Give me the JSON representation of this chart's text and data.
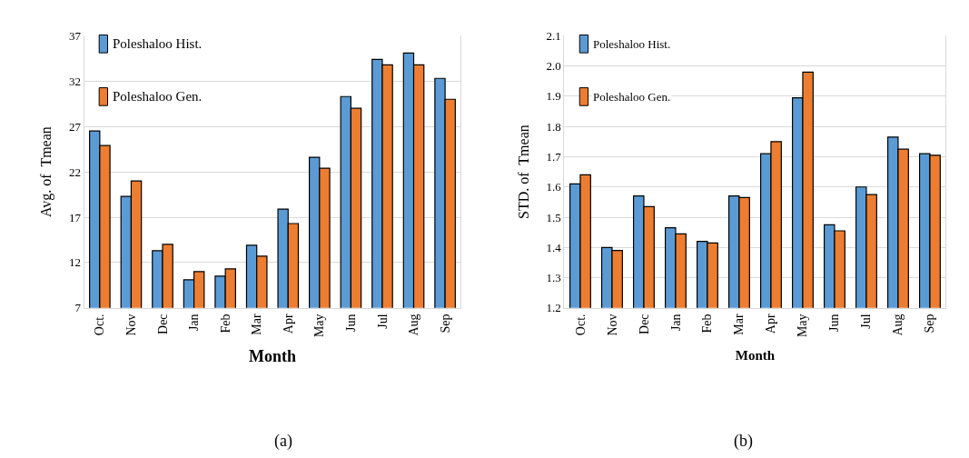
{
  "chart_data": [
    {
      "type": "bar",
      "xlabel": "Month",
      "ylabel": "Avg. of  Tmean",
      "categories": [
        "Oct.",
        "Nov",
        "Dec",
        "Jan",
        "Feb",
        "Mar",
        "Apr",
        "May",
        "Jun",
        "Jul",
        "Aug",
        "Sep"
      ],
      "series": [
        {
          "name": "Poleshaloo Hist.",
          "color": "#5b9bd5",
          "values": [
            26.5,
            19.3,
            13.3,
            10.1,
            10.5,
            13.9,
            17.9,
            23.6,
            30.3,
            34.4,
            35.1,
            32.3
          ]
        },
        {
          "name": "Poleshaloo Gen.",
          "color": "#ed7d31",
          "values": [
            24.9,
            21.0,
            14.0,
            11.0,
            11.3,
            12.7,
            16.3,
            22.4,
            29.0,
            33.8,
            33.8,
            30.0
          ]
        }
      ],
      "ylim": [
        7,
        37
      ],
      "yticks": [
        7,
        12,
        17,
        22,
        27,
        32,
        37
      ],
      "grid": "y",
      "legend": "top left",
      "annotations": [
        "(a)"
      ]
    },
    {
      "type": "bar",
      "xlabel": "Month",
      "ylabel": "STD. of  Tmean",
      "categories": [
        "Oct.",
        "Nov",
        "Dec",
        "Jan",
        "Feb",
        "Mar",
        "Apr",
        "May",
        "Jun",
        "Jul",
        "Aug",
        "Sep"
      ],
      "series": [
        {
          "name": "Poleshaloo Hist.",
          "color": "#5b9bd5",
          "values": [
            1.61,
            1.4,
            1.57,
            1.465,
            1.42,
            1.57,
            1.71,
            1.895,
            1.475,
            1.6,
            1.765,
            1.71
          ]
        },
        {
          "name": "Poleshaloo Gen.",
          "color": "#ed7d31",
          "values": [
            1.64,
            1.39,
            1.535,
            1.445,
            1.415,
            1.565,
            1.75,
            1.98,
            1.455,
            1.575,
            1.725,
            1.705
          ]
        }
      ],
      "ylim": [
        1.2,
        2.1
      ],
      "yticks": [
        {
          "value": 1.2,
          "label": "1.2"
        },
        {
          "value": 1.3,
          "label": "1.3"
        },
        {
          "value": 1.4,
          "label": "1.4"
        },
        {
          "value": 1.5,
          "label": "1.5"
        },
        {
          "value": 1.6,
          "label": "1.6"
        },
        {
          "value": 1.7,
          "label": "1.7"
        },
        {
          "value": 1.8,
          "label": "1.8"
        },
        {
          "value": 1.9,
          "label": "1.9"
        },
        {
          "value": 2.0,
          "label": "2.0"
        },
        {
          "value": 2.1,
          "label": "2.1"
        }
      ],
      "grid": "y",
      "legend": "top left",
      "annotations": [
        "(b)"
      ]
    }
  ]
}
